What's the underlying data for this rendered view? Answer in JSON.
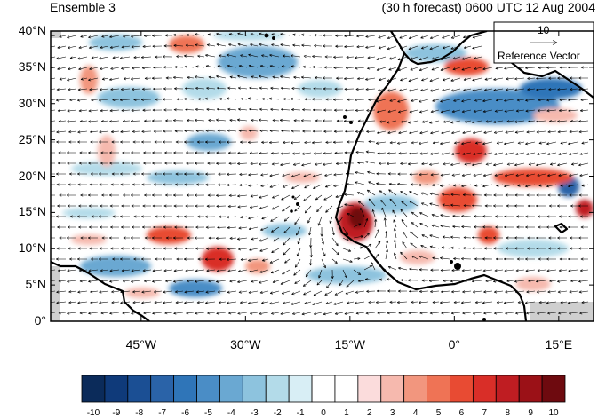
{
  "title_left": "Ensemble 3",
  "title_right": "(30 h forecast) 0600 UTC 12 Aug 2004",
  "reference_vector": {
    "magnitude": "10",
    "label": "Reference Vector"
  },
  "map": {
    "lon_range": [
      -58,
      20
    ],
    "lat_range": [
      0,
      40
    ],
    "lat_ticks": [
      "0°",
      "5°N",
      "10°N",
      "15°N",
      "20°N",
      "25°N",
      "30°N",
      "35°N",
      "40°N"
    ],
    "lon_ticks": [
      "45°W",
      "30°W",
      "15°W",
      "0°",
      "15°E"
    ],
    "lon_tick_values": [
      -45,
      -30,
      -15,
      0,
      15
    ],
    "lat_tick_values": [
      0,
      5,
      10,
      15,
      20,
      25,
      30,
      35,
      40
    ]
  },
  "colorbar": {
    "labels": [
      "-10",
      "-9",
      "-8",
      "-7",
      "-6",
      "-5",
      "-4",
      "-3",
      "-2",
      "-1",
      "0",
      "1",
      "2",
      "3",
      "4",
      "5",
      "6",
      "7",
      "8",
      "9",
      "10"
    ],
    "colors": [
      "#0b2b5a",
      "#0f3a7a",
      "#1b4f94",
      "#2a63a8",
      "#2f75b8",
      "#4a8dc6",
      "#6aa8d2",
      "#8dc3de",
      "#b3dbe9",
      "#d8eef5",
      "#ffffff",
      "#ffffff",
      "#fbdcdc",
      "#f6b9ae",
      "#f2967e",
      "#ef7355",
      "#e84b33",
      "#d92e28",
      "#bf1d22",
      "#9b1117",
      "#6e0a0f"
    ]
  }
}
